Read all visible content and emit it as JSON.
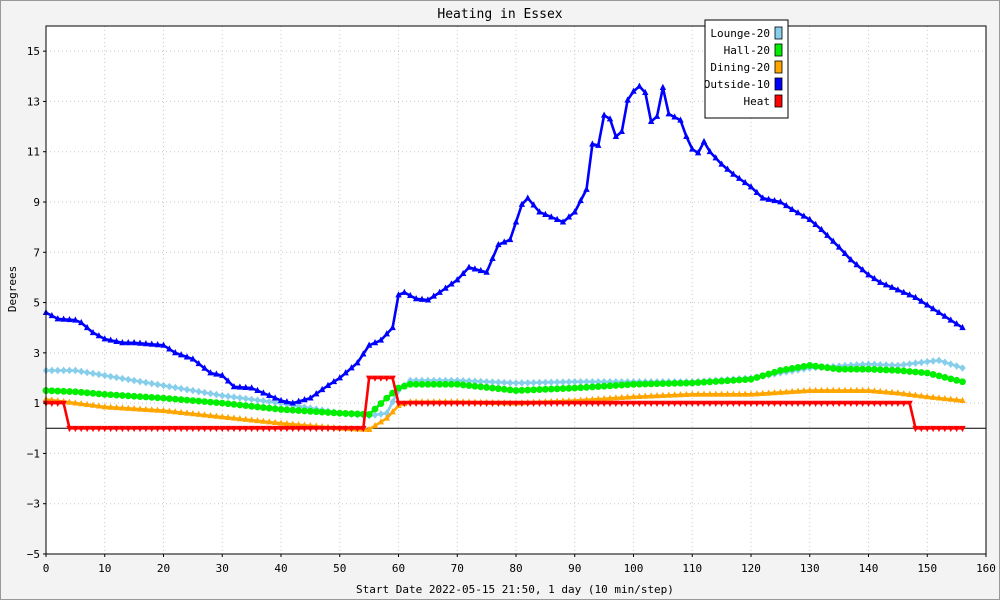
{
  "chart_data": {
    "type": "line",
    "title": "Heating in Essex",
    "xlabel": "Start Date 2022-05-15 21:50, 1 day (10 min/step)",
    "ylabel": "Degrees",
    "xlim": [
      0,
      160
    ],
    "ylim": [
      -5,
      16
    ],
    "xticks": [
      0,
      10,
      20,
      30,
      40,
      50,
      60,
      70,
      80,
      90,
      100,
      110,
      120,
      130,
      140,
      150,
      160
    ],
    "yticks": [
      -5,
      -3,
      -1,
      1,
      3,
      5,
      7,
      9,
      11,
      13,
      15
    ],
    "grid": true,
    "legend_position": "top-right",
    "series": [
      {
        "name": "Lounge-20",
        "color": "#87ceeb",
        "marker": "diamond",
        "points": [
          [
            0,
            2.3
          ],
          [
            5,
            2.3
          ],
          [
            10,
            2.1
          ],
          [
            20,
            1.7
          ],
          [
            30,
            1.3
          ],
          [
            40,
            1.0
          ],
          [
            45,
            0.8
          ],
          [
            50,
            0.6
          ],
          [
            55,
            0.5
          ],
          [
            58,
            0.6
          ],
          [
            60,
            1.5
          ],
          [
            62,
            1.9
          ],
          [
            70,
            1.9
          ],
          [
            80,
            1.8
          ],
          [
            90,
            1.85
          ],
          [
            100,
            1.85
          ],
          [
            110,
            1.85
          ],
          [
            120,
            2.0
          ],
          [
            130,
            2.4
          ],
          [
            140,
            2.55
          ],
          [
            145,
            2.5
          ],
          [
            150,
            2.65
          ],
          [
            152,
            2.7
          ],
          [
            156,
            2.4
          ]
        ]
      },
      {
        "name": "Hall-20",
        "color": "#00ee00",
        "marker": "circle",
        "points": [
          [
            0,
            1.5
          ],
          [
            5,
            1.45
          ],
          [
            10,
            1.35
          ],
          [
            20,
            1.2
          ],
          [
            30,
            1.0
          ],
          [
            40,
            0.75
          ],
          [
            50,
            0.6
          ],
          [
            55,
            0.55
          ],
          [
            58,
            1.2
          ],
          [
            60,
            1.6
          ],
          [
            62,
            1.75
          ],
          [
            70,
            1.75
          ],
          [
            80,
            1.5
          ],
          [
            90,
            1.6
          ],
          [
            100,
            1.75
          ],
          [
            110,
            1.8
          ],
          [
            120,
            1.95
          ],
          [
            125,
            2.3
          ],
          [
            130,
            2.5
          ],
          [
            135,
            2.35
          ],
          [
            140,
            2.35
          ],
          [
            145,
            2.3
          ],
          [
            150,
            2.2
          ],
          [
            156,
            1.85
          ]
        ]
      },
      {
        "name": "Dining-20",
        "color": "#ffa500",
        "marker": "triangle",
        "points": [
          [
            0,
            1.15
          ],
          [
            5,
            1.0
          ],
          [
            10,
            0.85
          ],
          [
            20,
            0.7
          ],
          [
            30,
            0.45
          ],
          [
            40,
            0.2
          ],
          [
            50,
            0.0
          ],
          [
            55,
            -0.05
          ],
          [
            58,
            0.4
          ],
          [
            60,
            0.9
          ],
          [
            62,
            1.05
          ],
          [
            70,
            1.05
          ],
          [
            80,
            1.0
          ],
          [
            90,
            1.1
          ],
          [
            100,
            1.25
          ],
          [
            110,
            1.35
          ],
          [
            120,
            1.35
          ],
          [
            130,
            1.5
          ],
          [
            140,
            1.5
          ],
          [
            145,
            1.4
          ],
          [
            150,
            1.25
          ],
          [
            156,
            1.1
          ]
        ]
      },
      {
        "name": "Outside-10",
        "color": "#0000ff",
        "marker": "triangle",
        "points": [
          [
            0,
            4.6
          ],
          [
            2,
            4.35
          ],
          [
            5,
            4.3
          ],
          [
            6,
            4.2
          ],
          [
            8,
            3.8
          ],
          [
            10,
            3.55
          ],
          [
            13,
            3.4
          ],
          [
            15,
            3.4
          ],
          [
            20,
            3.3
          ],
          [
            22,
            3.0
          ],
          [
            25,
            2.75
          ],
          [
            28,
            2.2
          ],
          [
            30,
            2.1
          ],
          [
            32,
            1.65
          ],
          [
            35,
            1.6
          ],
          [
            37,
            1.4
          ],
          [
            40,
            1.1
          ],
          [
            42,
            1.0
          ],
          [
            45,
            1.2
          ],
          [
            48,
            1.7
          ],
          [
            50,
            2.0
          ],
          [
            53,
            2.6
          ],
          [
            55,
            3.3
          ],
          [
            57,
            3.5
          ],
          [
            59,
            4.0
          ],
          [
            60,
            5.3
          ],
          [
            61,
            5.4
          ],
          [
            63,
            5.15
          ],
          [
            65,
            5.1
          ],
          [
            67,
            5.4
          ],
          [
            70,
            5.9
          ],
          [
            72,
            6.4
          ],
          [
            75,
            6.2
          ],
          [
            77,
            7.3
          ],
          [
            79,
            7.5
          ],
          [
            81,
            8.9
          ],
          [
            82,
            9.15
          ],
          [
            84,
            8.6
          ],
          [
            86,
            8.4
          ],
          [
            88,
            8.2
          ],
          [
            90,
            8.6
          ],
          [
            92,
            9.5
          ],
          [
            93,
            11.3
          ],
          [
            94,
            11.25
          ],
          [
            95,
            12.45
          ],
          [
            96,
            12.3
          ],
          [
            97,
            11.6
          ],
          [
            98,
            11.8
          ],
          [
            99,
            13.05
          ],
          [
            100,
            13.4
          ],
          [
            101,
            13.6
          ],
          [
            102,
            13.35
          ],
          [
            103,
            12.2
          ],
          [
            104,
            12.4
          ],
          [
            105,
            13.55
          ],
          [
            106,
            12.5
          ],
          [
            108,
            12.25
          ],
          [
            109,
            11.6
          ],
          [
            110,
            11.1
          ],
          [
            111,
            10.95
          ],
          [
            112,
            11.4
          ],
          [
            113,
            11.0
          ],
          [
            115,
            10.5
          ],
          [
            117,
            10.1
          ],
          [
            120,
            9.6
          ],
          [
            122,
            9.15
          ],
          [
            125,
            9.0
          ],
          [
            127,
            8.7
          ],
          [
            130,
            8.3
          ],
          [
            132,
            7.9
          ],
          [
            135,
            7.2
          ],
          [
            137,
            6.7
          ],
          [
            140,
            6.1
          ],
          [
            142,
            5.8
          ],
          [
            145,
            5.5
          ],
          [
            148,
            5.2
          ],
          [
            150,
            4.9
          ],
          [
            152,
            4.6
          ],
          [
            154,
            4.3
          ],
          [
            156,
            4.0
          ]
        ]
      },
      {
        "name": "Heat",
        "color": "#ff0000",
        "marker": "triangle-down",
        "points": [
          [
            0,
            1
          ],
          [
            3,
            1
          ],
          [
            4,
            0
          ],
          [
            54,
            0
          ],
          [
            55,
            2
          ],
          [
            59,
            2
          ],
          [
            60,
            1
          ],
          [
            147,
            1
          ],
          [
            148,
            0
          ],
          [
            156,
            0
          ]
        ]
      }
    ]
  }
}
